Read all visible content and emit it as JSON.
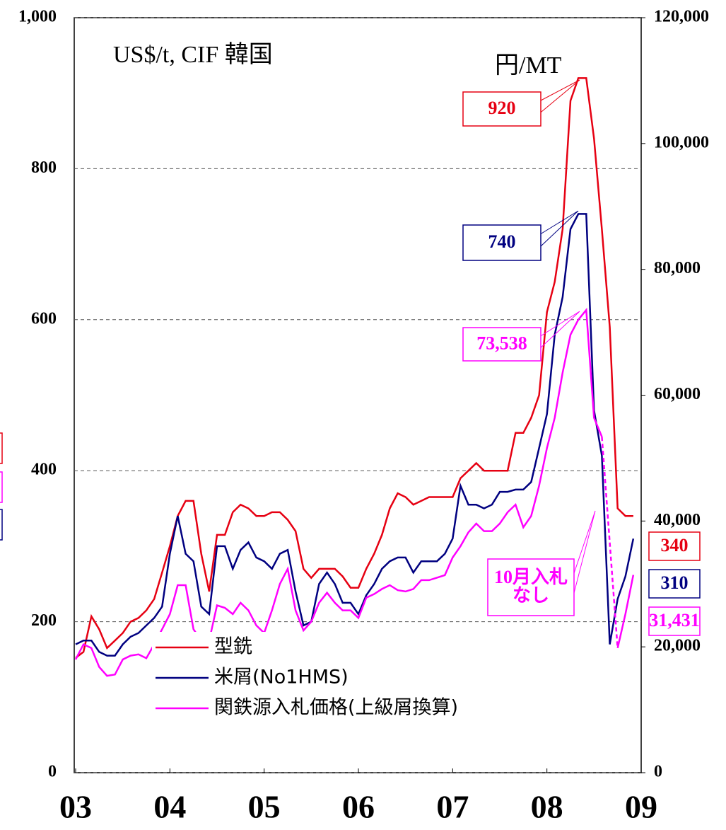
{
  "chart_data": {
    "type": "line",
    "title": "US$/t, CIF 韓国",
    "y2_label": "円/MT",
    "x": [
      3,
      3.083,
      3.167,
      3.25,
      3.333,
      3.417,
      3.5,
      3.583,
      3.667,
      3.75,
      3.833,
      3.917,
      4,
      4.083,
      4.167,
      4.25,
      4.333,
      4.417,
      4.5,
      4.583,
      4.667,
      4.75,
      4.833,
      4.917,
      5,
      5.083,
      5.167,
      5.25,
      5.333,
      5.417,
      5.5,
      5.583,
      5.667,
      5.75,
      5.833,
      5.917,
      6,
      6.083,
      6.167,
      6.25,
      6.333,
      6.417,
      6.5,
      6.583,
      6.667,
      6.75,
      6.833,
      6.917,
      7,
      7.083,
      7.167,
      7.25,
      7.333,
      7.417,
      7.5,
      7.583,
      7.667,
      7.75,
      7.833,
      7.917,
      8,
      8.083,
      8.167,
      8.25,
      8.333,
      8.417,
      8.5,
      8.583,
      8.667,
      8.75,
      8.833,
      8.917
    ],
    "series": [
      {
        "name": "型銑",
        "color": "#e60012",
        "values": [
          152,
          160,
          207,
          190,
          165,
          175,
          185,
          200,
          205,
          215,
          230,
          265,
          300,
          340,
          360,
          360,
          290,
          240,
          315,
          315,
          345,
          355,
          350,
          340,
          340,
          345,
          345,
          335,
          320,
          270,
          258,
          270,
          270,
          270,
          260,
          245,
          245,
          270,
          290,
          315,
          350,
          370,
          365,
          355,
          360,
          365,
          365,
          365,
          365,
          390,
          400,
          410,
          400,
          400,
          400,
          400,
          450,
          450,
          470,
          500,
          610,
          650,
          720,
          890,
          920,
          920,
          840,
          720,
          590,
          350,
          340,
          340
        ]
      },
      {
        "name": "米屑(No1HMS)",
        "color": "#000080",
        "values": [
          170,
          175,
          175,
          160,
          155,
          155,
          170,
          180,
          185,
          195,
          205,
          220,
          290,
          340,
          290,
          280,
          220,
          210,
          300,
          300,
          270,
          295,
          305,
          285,
          280,
          270,
          290,
          295,
          240,
          195,
          200,
          250,
          265,
          250,
          225,
          225,
          210,
          235,
          250,
          270,
          280,
          285,
          285,
          265,
          280,
          280,
          280,
          290,
          310,
          380,
          355,
          355,
          350,
          355,
          372,
          372,
          375,
          375,
          385,
          430,
          475,
          580,
          630,
          720,
          740,
          740,
          480,
          420,
          170,
          230,
          260,
          310
        ]
      },
      {
        "name": "関鉄源入札価格(上級屑換算)",
        "color": "#ff00ff",
        "axis": "y2",
        "values": [
          18000,
          20400,
          19800,
          16800,
          15400,
          15600,
          18000,
          18600,
          18800,
          18200,
          20400,
          22800,
          25200,
          29800,
          29800,
          22800,
          21000,
          21000,
          26600,
          26200,
          25200,
          27000,
          25800,
          23400,
          22200,
          25800,
          30000,
          32400,
          25800,
          22600,
          24000,
          27000,
          28600,
          27000,
          25800,
          25800,
          24600,
          27800,
          28400,
          29200,
          29800,
          29000,
          28800,
          29200,
          30600,
          30600,
          31000,
          31400,
          34200,
          36000,
          38200,
          39600,
          38400,
          38400,
          39600,
          41400,
          42600,
          39000,
          40800,
          45600,
          51600,
          56400,
          63600,
          69600,
          72000,
          73538,
          56400,
          53400,
          null,
          19800,
          25200,
          31431
        ]
      }
    ],
    "xlim": [
      3,
      9
    ],
    "xticks": [
      {
        "value": 3,
        "label": "03"
      },
      {
        "value": 4,
        "label": "04"
      },
      {
        "value": 5,
        "label": "05"
      },
      {
        "value": 6,
        "label": "06"
      },
      {
        "value": 7,
        "label": "07"
      },
      {
        "value": 8,
        "label": "08"
      },
      {
        "value": 9,
        "label": "09"
      }
    ],
    "ylim": [
      0,
      1000
    ],
    "yticks": [
      0,
      200,
      400,
      600,
      800,
      {
        "value": 1000,
        "label": "1,000"
      }
    ],
    "y2lim": [
      0,
      120000
    ],
    "y2ticks": [
      0,
      {
        "value": 20000,
        "label": "20,000"
      },
      {
        "value": 40000,
        "label": "40,000"
      },
      {
        "value": 60000,
        "label": "60,000"
      },
      {
        "value": 80000,
        "label": "80,000"
      },
      {
        "value": 100000,
        "label": "100,000"
      },
      {
        "value": 120000,
        "label": "120,000"
      }
    ],
    "grid": true,
    "legend": "lower center",
    "annotations": [
      {
        "text": "920",
        "series": 0
      },
      {
        "text": "740",
        "series": 1
      },
      {
        "text": "73,538",
        "series": 2
      },
      {
        "text": "10月入札なし",
        "series": 2
      },
      {
        "text": "340",
        "series": 0
      },
      {
        "text": "310",
        "series": 1
      },
      {
        "text": "31,431",
        "series": 2
      }
    ]
  }
}
